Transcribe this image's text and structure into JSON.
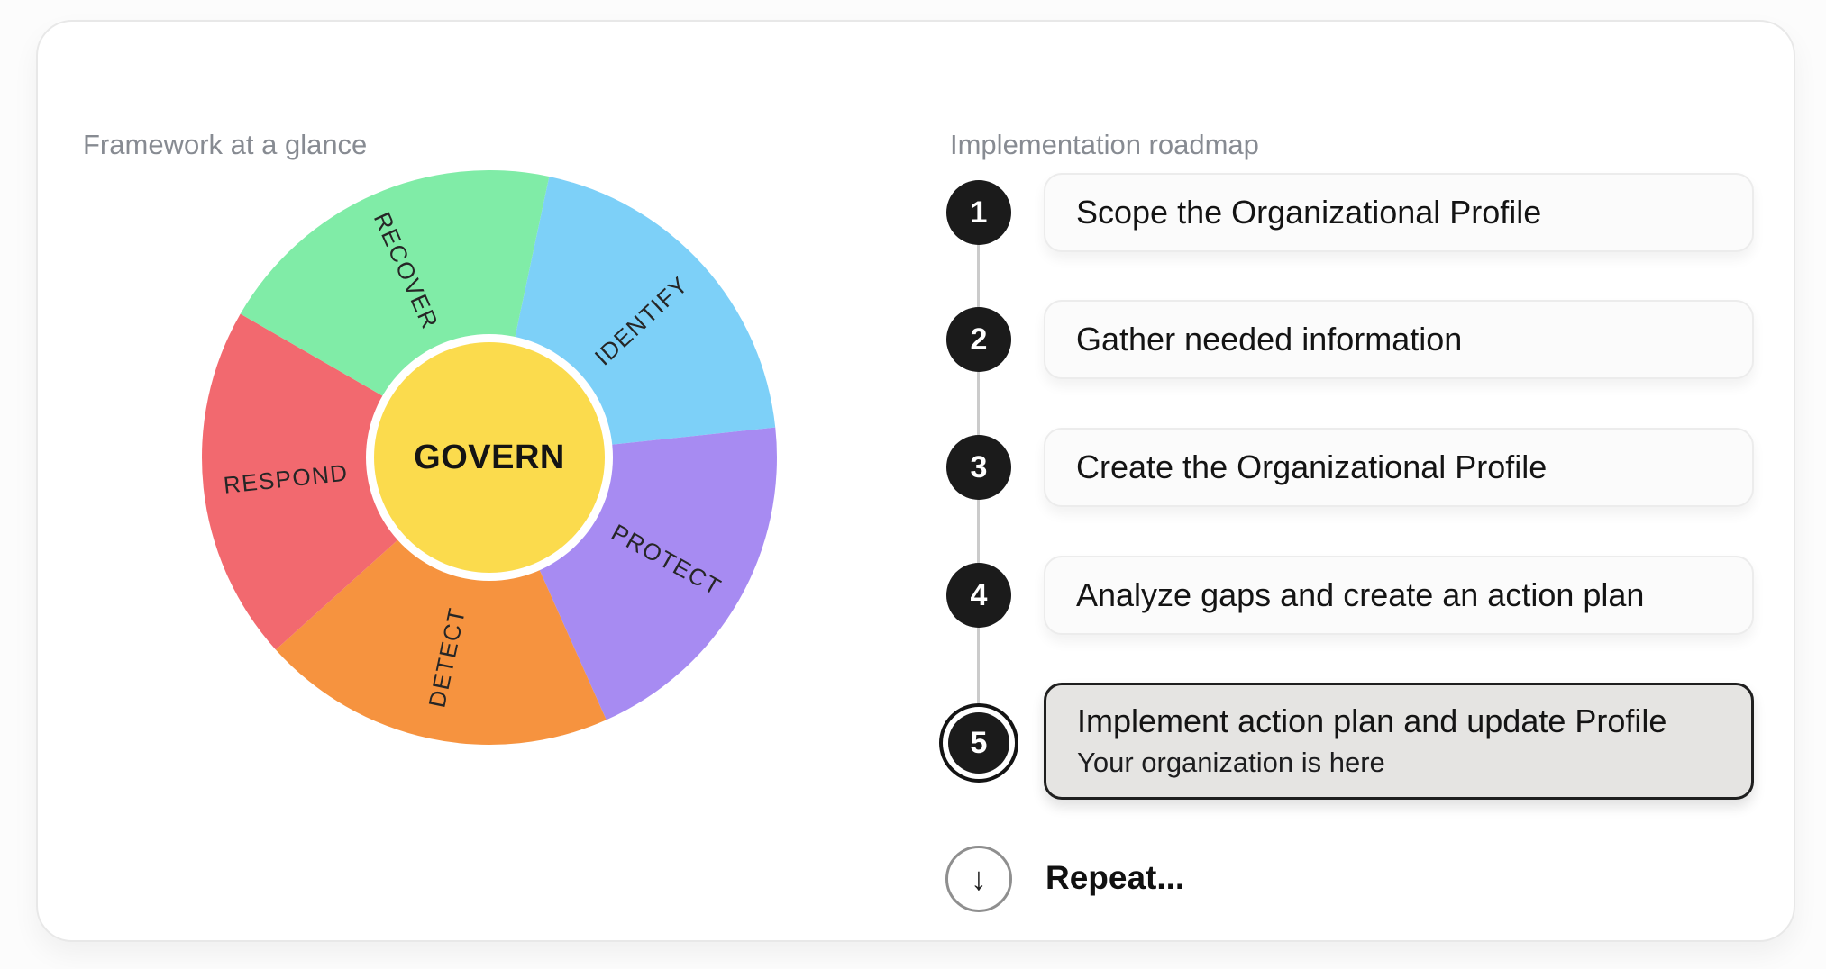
{
  "headings": {
    "left": "Framework at a glance",
    "right": "Implementation roadmap"
  },
  "wheel": {
    "center_label": "GOVERN",
    "center_color": "#FBDB4D",
    "ring_color": "#ffffff",
    "label_color": "#262626",
    "segments": [
      {
        "label": "IDENTIFY",
        "color": "#7DD0F8",
        "start_angle": 12,
        "end_angle": 84,
        "label_rotation": -43
      },
      {
        "label": "PROTECT",
        "color": "#A78BF2",
        "start_angle": 84,
        "end_angle": 156,
        "label_rotation": 29
      },
      {
        "label": "DETECT",
        "color": "#F6933F",
        "start_angle": 156,
        "end_angle": 228,
        "label_rotation": -78
      },
      {
        "label": "RESPOND",
        "color": "#F2696F",
        "start_angle": 228,
        "end_angle": 300,
        "label_rotation": -6
      },
      {
        "label": "RECOVER",
        "color": "#80ECA7",
        "start_angle": 300,
        "end_angle": 372,
        "label_rotation": 66
      }
    ]
  },
  "roadmap": {
    "steps": [
      {
        "number": "1",
        "label": "Scope the Organizational Profile",
        "active": false
      },
      {
        "number": "2",
        "label": "Gather needed information",
        "active": false
      },
      {
        "number": "3",
        "label": "Create the Organizational Profile",
        "active": false
      },
      {
        "number": "4",
        "label": "Analyze gaps and create an action plan",
        "active": false
      },
      {
        "number": "5",
        "label": "Implement action plan and update Profile",
        "sublabel": "Your organization is here",
        "active": true
      }
    ],
    "repeat": {
      "label": "Repeat...",
      "icon": "down-arrow"
    }
  },
  "colors": {
    "page_background": "#fcfcfc",
    "card_background": "#ffffff",
    "card_border": "#e8e8e8",
    "step_circle": "#1b1b1b",
    "connector": "#cbcbcb",
    "active_card_background": "#e5e4e2",
    "heading_text": "#878b92"
  }
}
